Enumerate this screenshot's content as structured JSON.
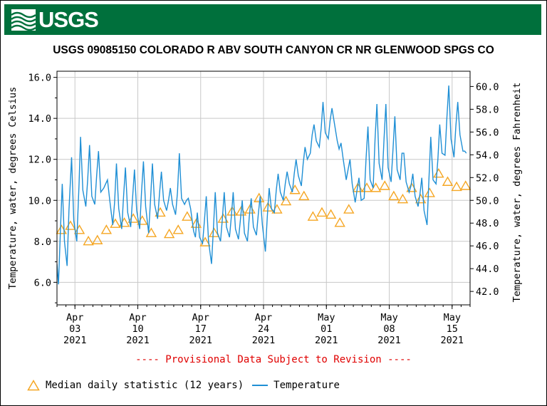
{
  "header": {
    "logo_text": "USGS",
    "title": "USGS 09085150 COLORADO R ABV SOUTH CANYON CR NR GLENWOOD SPGS CO"
  },
  "footer": {
    "provisional_note": "---- Provisional Data Subject to Revision ----"
  },
  "legend": {
    "median_label": "Median daily statistic (12 years)",
    "temp_label": "Temperature"
  },
  "colors": {
    "banner": "#00703c",
    "temperature_line": "#1f8fd5",
    "median_marker": "#f5a623",
    "provisional_text": "#e00000",
    "grid": "#c8c8c8"
  },
  "chart_data": {
    "type": "line",
    "title": "USGS 09085150 COLORADO R ABV SOUTH CANYON CR NR GLENWOOD SPGS CO",
    "ylabel": "Temperature, water, degrees Celsius",
    "y2label": "Temperature, water, degrees Fahrenheit",
    "ylim": [
      4.9,
      16.3
    ],
    "y2lim": [
      40.82,
      61.34
    ],
    "yticks": [
      "6.0",
      "8.0",
      "10.0",
      "12.0",
      "14.0",
      "16.0"
    ],
    "y2ticks": [
      "42.0",
      "44.0",
      "46.0",
      "48.0",
      "50.0",
      "52.0",
      "54.0",
      "56.0",
      "58.0",
      "60.0"
    ],
    "xlim": [
      "2021-04-01",
      "2021-05-17"
    ],
    "xticks": [
      {
        "date": "2021-04-03",
        "label": [
          "Apr",
          "03",
          "2021"
        ]
      },
      {
        "date": "2021-04-10",
        "label": [
          "Apr",
          "10",
          "2021"
        ]
      },
      {
        "date": "2021-04-17",
        "label": [
          "Apr",
          "17",
          "2021"
        ]
      },
      {
        "date": "2021-04-24",
        "label": [
          "Apr",
          "24",
          "2021"
        ]
      },
      {
        "date": "2021-05-01",
        "label": [
          "May",
          "01",
          "2021"
        ]
      },
      {
        "date": "2021-05-08",
        "label": [
          "May",
          "08",
          "2021"
        ]
      },
      {
        "date": "2021-05-15",
        "label": [
          "May",
          "15",
          "2021"
        ]
      }
    ],
    "grid": true,
    "legend_position": "bottom",
    "series": [
      {
        "name": "Median daily statistic (12 years)",
        "kind": "scatter",
        "marker": "triangle",
        "points": [
          {
            "date": "2021-04-01",
            "value": 8.55
          },
          {
            "date": "2021-04-02",
            "value": 8.75
          },
          {
            "date": "2021-04-03",
            "value": 8.55
          },
          {
            "date": "2021-04-04",
            "value": 8.0
          },
          {
            "date": "2021-04-05",
            "value": 8.05
          },
          {
            "date": "2021-04-06",
            "value": 8.55
          },
          {
            "date": "2021-04-07",
            "value": 8.85
          },
          {
            "date": "2021-04-08",
            "value": 8.9
          },
          {
            "date": "2021-04-09",
            "value": 9.1
          },
          {
            "date": "2021-04-10",
            "value": 9.0
          },
          {
            "date": "2021-04-11",
            "value": 8.4
          },
          {
            "date": "2021-04-12",
            "value": 9.4
          },
          {
            "date": "2021-04-13",
            "value": 8.35
          },
          {
            "date": "2021-04-14",
            "value": 8.55
          },
          {
            "date": "2021-04-15",
            "value": 9.2
          },
          {
            "date": "2021-04-16",
            "value": 8.85
          },
          {
            "date": "2021-04-17",
            "value": 7.95
          },
          {
            "date": "2021-04-18",
            "value": 8.4
          },
          {
            "date": "2021-04-19",
            "value": 9.1
          },
          {
            "date": "2021-04-20",
            "value": 9.45
          },
          {
            "date": "2021-04-21",
            "value": 9.45
          },
          {
            "date": "2021-04-22",
            "value": 9.55
          },
          {
            "date": "2021-04-23",
            "value": 10.1
          },
          {
            "date": "2021-04-24",
            "value": 9.65
          },
          {
            "date": "2021-04-25",
            "value": 9.55
          },
          {
            "date": "2021-04-26",
            "value": 9.95
          },
          {
            "date": "2021-04-27",
            "value": 10.5
          },
          {
            "date": "2021-04-28",
            "value": 10.2
          },
          {
            "date": "2021-04-29",
            "value": 9.2
          },
          {
            "date": "2021-04-30",
            "value": 9.4
          },
          {
            "date": "2021-05-01",
            "value": 9.3
          },
          {
            "date": "2021-05-02",
            "value": 8.9
          },
          {
            "date": "2021-05-03",
            "value": 9.55
          },
          {
            "date": "2021-05-04",
            "value": 10.6
          },
          {
            "date": "2021-05-05",
            "value": 10.6
          },
          {
            "date": "2021-05-06",
            "value": 10.6
          },
          {
            "date": "2021-05-07",
            "value": 10.7
          },
          {
            "date": "2021-05-08",
            "value": 10.2
          },
          {
            "date": "2021-05-09",
            "value": 10.05
          },
          {
            "date": "2021-05-10",
            "value": 10.6
          },
          {
            "date": "2021-05-11",
            "value": 10.05
          },
          {
            "date": "2021-05-12",
            "value": 10.35
          },
          {
            "date": "2021-05-13",
            "value": 11.3
          },
          {
            "date": "2021-05-14",
            "value": 10.9
          },
          {
            "date": "2021-05-15",
            "value": 10.65
          },
          {
            "date": "2021-05-16",
            "value": 10.7
          }
        ]
      },
      {
        "name": "Temperature",
        "kind": "line",
        "points": [
          [
            "2021-04-01 00:00",
            6.9
          ],
          [
            "2021-04-01 04:00",
            5.9
          ],
          [
            "2021-04-01 09:00",
            8.4
          ],
          [
            "2021-04-01 14:00",
            10.8
          ],
          [
            "2021-04-01 20:00",
            8.0
          ],
          [
            "2021-04-02 03:00",
            6.8
          ],
          [
            "2021-04-02 08:00",
            9.5
          ],
          [
            "2021-04-02 15:00",
            12.1
          ],
          [
            "2021-04-02 21:00",
            9.0
          ],
          [
            "2021-04-03 05:00",
            8.0
          ],
          [
            "2021-04-03 11:00",
            10.8
          ],
          [
            "2021-04-03 15:00",
            13.1
          ],
          [
            "2021-04-03 21:00",
            10.5
          ],
          [
            "2021-04-04 05:00",
            9.7
          ],
          [
            "2021-04-04 10:00",
            11.0
          ],
          [
            "2021-04-04 15:00",
            12.7
          ],
          [
            "2021-04-04 21:00",
            10.2
          ],
          [
            "2021-04-05 05:00",
            9.8
          ],
          [
            "2021-04-05 10:00",
            11.2
          ],
          [
            "2021-04-05 15:00",
            12.4
          ],
          [
            "2021-04-05 21:00",
            10.4
          ],
          [
            "2021-04-06 05:00",
            10.6
          ],
          [
            "2021-04-06 10:00",
            10.8
          ],
          [
            "2021-04-06 15:00",
            11.0
          ],
          [
            "2021-04-06 21:00",
            10.0
          ],
          [
            "2021-04-07 05:00",
            8.8
          ],
          [
            "2021-04-07 10:00",
            9.9
          ],
          [
            "2021-04-07 15:00",
            11.8
          ],
          [
            "2021-04-07 21:00",
            9.6
          ],
          [
            "2021-04-08 05:00",
            8.6
          ],
          [
            "2021-04-08 10:00",
            10.2
          ],
          [
            "2021-04-08 15:00",
            11.6
          ],
          [
            "2021-04-08 21:00",
            9.4
          ],
          [
            "2021-04-09 05:00",
            8.7
          ],
          [
            "2021-04-09 10:00",
            10.1
          ],
          [
            "2021-04-09 15:00",
            11.5
          ],
          [
            "2021-04-09 21:00",
            9.5
          ],
          [
            "2021-04-10 05:00",
            8.6
          ],
          [
            "2021-04-10 10:00",
            10.4
          ],
          [
            "2021-04-10 15:00",
            11.9
          ],
          [
            "2021-04-10 21:00",
            9.7
          ],
          [
            "2021-04-11 05:00",
            8.4
          ],
          [
            "2021-04-11 10:00",
            10.0
          ],
          [
            "2021-04-11 15:00",
            11.8
          ],
          [
            "2021-04-11 21:00",
            9.8
          ],
          [
            "2021-04-12 05:00",
            9.1
          ],
          [
            "2021-04-12 10:00",
            10.3
          ],
          [
            "2021-04-12 15:00",
            11.4
          ],
          [
            "2021-04-12 21:00",
            10.0
          ],
          [
            "2021-04-13 05:00",
            9.5
          ],
          [
            "2021-04-13 10:00",
            10.0
          ],
          [
            "2021-04-13 15:00",
            10.6
          ],
          [
            "2021-04-13 21:00",
            9.8
          ],
          [
            "2021-04-14 05:00",
            9.3
          ],
          [
            "2021-04-14 10:00",
            10.4
          ],
          [
            "2021-04-14 15:00",
            12.3
          ],
          [
            "2021-04-14 21:00",
            10.1
          ],
          [
            "2021-04-15 05:00",
            9.8
          ],
          [
            "2021-04-15 10:00",
            10.0
          ],
          [
            "2021-04-15 15:00",
            10.1
          ],
          [
            "2021-04-15 21:00",
            9.6
          ],
          [
            "2021-04-16 05:00",
            8.5
          ],
          [
            "2021-04-16 10:00",
            8.2
          ],
          [
            "2021-04-16 15:00",
            9.4
          ],
          [
            "2021-04-16 21:00",
            8.2
          ],
          [
            "2021-04-17 05:00",
            7.9
          ],
          [
            "2021-04-17 10:00",
            9.0
          ],
          [
            "2021-04-17 15:00",
            10.2
          ],
          [
            "2021-04-17 21:00",
            8.0
          ],
          [
            "2021-04-18 05:00",
            6.9
          ],
          [
            "2021-04-18 10:00",
            8.6
          ],
          [
            "2021-04-18 15:00",
            10.4
          ],
          [
            "2021-04-18 21:00",
            8.4
          ],
          [
            "2021-04-19 05:00",
            8.0
          ],
          [
            "2021-04-19 10:00",
            9.1
          ],
          [
            "2021-04-19 15:00",
            10.4
          ],
          [
            "2021-04-19 21:00",
            8.7
          ],
          [
            "2021-04-20 05:00",
            8.2
          ],
          [
            "2021-04-20 10:00",
            9.2
          ],
          [
            "2021-04-20 15:00",
            10.4
          ],
          [
            "2021-04-20 21:00",
            8.6
          ],
          [
            "2021-04-21 05:00",
            8.1
          ],
          [
            "2021-04-21 10:00",
            9.0
          ],
          [
            "2021-04-21 15:00",
            10.0
          ],
          [
            "2021-04-21 21:00",
            8.4
          ],
          [
            "2021-04-22 05:00",
            8.0
          ],
          [
            "2021-04-22 10:00",
            9.2
          ],
          [
            "2021-04-22 15:00",
            10.1
          ],
          [
            "2021-04-22 21:00",
            8.7
          ],
          [
            "2021-04-23 05:00",
            8.3
          ],
          [
            "2021-04-23 10:00",
            9.3
          ],
          [
            "2021-04-23 15:00",
            10.2
          ],
          [
            "2021-04-23 21:00",
            8.8
          ],
          [
            "2021-04-24 05:00",
            7.5
          ],
          [
            "2021-04-24 10:00",
            9.2
          ],
          [
            "2021-04-24 15:00",
            10.6
          ],
          [
            "2021-04-24 21:00",
            9.6
          ],
          [
            "2021-04-25 05:00",
            9.4
          ],
          [
            "2021-04-25 10:00",
            10.5
          ],
          [
            "2021-04-25 15:00",
            11.3
          ],
          [
            "2021-04-25 21:00",
            10.4
          ],
          [
            "2021-04-26 05:00",
            10.0
          ],
          [
            "2021-04-26 10:00",
            10.8
          ],
          [
            "2021-04-26 15:00",
            11.4
          ],
          [
            "2021-04-26 21:00",
            10.8
          ],
          [
            "2021-04-27 05:00",
            10.4
          ],
          [
            "2021-04-27 10:00",
            11.3
          ],
          [
            "2021-04-27 15:00",
            12.0
          ],
          [
            "2021-04-27 21:00",
            11.2
          ],
          [
            "2021-04-28 05:00",
            10.7
          ],
          [
            "2021-04-28 10:00",
            11.8
          ],
          [
            "2021-04-28 15:00",
            12.6
          ],
          [
            "2021-04-28 21:00",
            12.0
          ],
          [
            "2021-04-29 05:00",
            12.3
          ],
          [
            "2021-04-29 10:00",
            13.2
          ],
          [
            "2021-04-29 15:00",
            13.7
          ],
          [
            "2021-04-29 21:00",
            12.9
          ],
          [
            "2021-04-30 05:00",
            12.6
          ],
          [
            "2021-04-30 10:00",
            13.5
          ],
          [
            "2021-04-30 15:00",
            14.8
          ],
          [
            "2021-04-30 21:00",
            13.3
          ],
          [
            "2021-05-01 05:00",
            13.0
          ],
          [
            "2021-05-01 10:00",
            13.9
          ],
          [
            "2021-05-01 15:00",
            14.5
          ],
          [
            "2021-05-01 21:00",
            13.8
          ],
          [
            "2021-05-02 05:00",
            12.9
          ],
          [
            "2021-05-02 10:00",
            12.5
          ],
          [
            "2021-05-02 15:00",
            12.8
          ],
          [
            "2021-05-02 21:00",
            12.0
          ],
          [
            "2021-05-03 05:00",
            11.0
          ],
          [
            "2021-05-03 10:00",
            11.5
          ],
          [
            "2021-05-03 15:00",
            12.0
          ],
          [
            "2021-05-03 21:00",
            10.8
          ],
          [
            "2021-05-04 05:00",
            9.9
          ],
          [
            "2021-05-04 10:00",
            10.5
          ],
          [
            "2021-05-04 15:00",
            11.1
          ],
          [
            "2021-05-04 21:00",
            10.0
          ],
          [
            "2021-05-05 05:00",
            10.1
          ],
          [
            "2021-05-05 10:00",
            12.0
          ],
          [
            "2021-05-05 15:00",
            13.6
          ],
          [
            "2021-05-05 21:00",
            11.0
          ],
          [
            "2021-05-06 05:00",
            10.6
          ],
          [
            "2021-05-06 10:00",
            13.0
          ],
          [
            "2021-05-06 15:00",
            14.7
          ],
          [
            "2021-05-06 21:00",
            11.8
          ],
          [
            "2021-05-07 05:00",
            11.0
          ],
          [
            "2021-05-07 10:00",
            13.0
          ],
          [
            "2021-05-07 15:00",
            14.7
          ],
          [
            "2021-05-07 21:00",
            11.6
          ],
          [
            "2021-05-08 05:00",
            10.9
          ],
          [
            "2021-05-08 10:00",
            12.5
          ],
          [
            "2021-05-08 15:00",
            14.1
          ],
          [
            "2021-05-08 21:00",
            11.5
          ],
          [
            "2021-05-09 05:00",
            11.0
          ],
          [
            "2021-05-09 10:00",
            12.3
          ],
          [
            "2021-05-09 15:00",
            12.3
          ],
          [
            "2021-05-09 21:00",
            10.9
          ],
          [
            "2021-05-10 05:00",
            10.4
          ],
          [
            "2021-05-10 10:00",
            10.7
          ],
          [
            "2021-05-10 15:00",
            11.3
          ],
          [
            "2021-05-10 21:00",
            10.2
          ],
          [
            "2021-05-11 05:00",
            9.7
          ],
          [
            "2021-05-11 10:00",
            10.3
          ],
          [
            "2021-05-11 15:00",
            11.1
          ],
          [
            "2021-05-11 21:00",
            9.5
          ],
          [
            "2021-05-12 05:00",
            8.8
          ],
          [
            "2021-05-12 10:00",
            11.0
          ],
          [
            "2021-05-12 15:00",
            13.1
          ],
          [
            "2021-05-12 21:00",
            11.0
          ],
          [
            "2021-05-13 05:00",
            10.8
          ],
          [
            "2021-05-13 10:00",
            12.0
          ],
          [
            "2021-05-13 15:00",
            13.7
          ],
          [
            "2021-05-13 21:00",
            12.3
          ],
          [
            "2021-05-14 05:00",
            12.2
          ],
          [
            "2021-05-14 10:00",
            14.0
          ],
          [
            "2021-05-14 15:00",
            15.6
          ],
          [
            "2021-05-14 21:00",
            13.0
          ],
          [
            "2021-05-15 05:00",
            12.1
          ],
          [
            "2021-05-15 10:00",
            13.6
          ],
          [
            "2021-05-15 15:00",
            14.8
          ],
          [
            "2021-05-15 21:00",
            13.2
          ],
          [
            "2021-05-16 05:00",
            12.4
          ],
          [
            "2021-05-16 10:00",
            12.4
          ],
          [
            "2021-05-16 14:00",
            12.3
          ]
        ]
      }
    ]
  }
}
